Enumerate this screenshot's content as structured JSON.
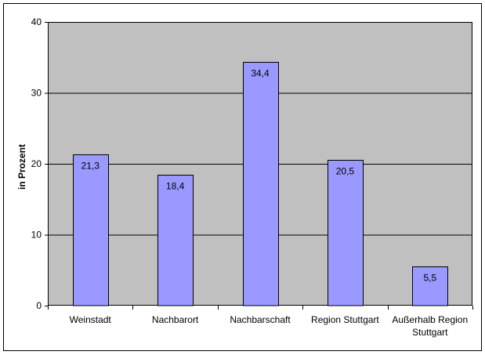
{
  "chart_data": {
    "type": "bar",
    "categories": [
      [
        "Weinstadt"
      ],
      [
        "Nachbarort"
      ],
      [
        "Nachbarschaft"
      ],
      [
        "Region Stuttgart"
      ],
      [
        "Außerhalb Region",
        "Stuttgart"
      ]
    ],
    "values": [
      21.3,
      18.4,
      34.4,
      20.5,
      5.5
    ],
    "value_labels": [
      "21,3",
      "18,4",
      "34,4",
      "20,5",
      "5,5"
    ],
    "ylabel": "in Prozent",
    "ylim": [
      0,
      40
    ],
    "yticks": [
      0,
      10,
      20,
      30,
      40
    ],
    "grid": true,
    "legend": "none",
    "colors": {
      "bar_fill": "#9999ff",
      "bar_stroke": "#000000",
      "plot_bg": "#c0c0c0",
      "grid": "#000000",
      "frame": "#000000"
    }
  }
}
